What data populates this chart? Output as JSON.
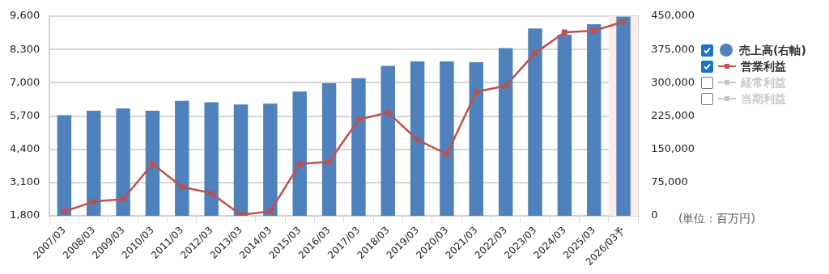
{
  "chart_data": {
    "type": "bar",
    "categories": [
      "2007/03",
      "2008/03",
      "2009/03",
      "2010/03",
      "2011/03",
      "2012/03",
      "2013/03",
      "2014/03",
      "2015/03",
      "2016/03",
      "2017/03",
      "2018/03",
      "2019/03",
      "2020/03",
      "2021/03",
      "2022/03",
      "2023/03",
      "2024/03",
      "2025/03",
      "2026/03予"
    ],
    "series": [
      {
        "name": "売上高(右軸)",
        "axis": "y2",
        "color": "#4f81bd",
        "values": [
          227000,
          237000,
          242000,
          237000,
          259000,
          256000,
          251000,
          253000,
          280000,
          299000,
          310000,
          338000,
          348000,
          348000,
          346000,
          378000,
          422000,
          408000,
          432000,
          449000
        ]
      },
      {
        "name": "営業利益",
        "type": "line",
        "color": "#c0504d",
        "values": [
          1970,
          2360,
          2450,
          3830,
          2930,
          2680,
          1840,
          1980,
          3830,
          3910,
          5560,
          5840,
          4770,
          4210,
          6650,
          6880,
          8160,
          8970,
          9030,
          9380
        ]
      },
      {
        "name": "経常利益",
        "type": "line",
        "color": "#c8c8c8",
        "values": [
          null,
          null,
          null,
          null,
          null,
          null,
          null,
          null,
          null,
          null,
          null,
          null,
          null,
          null,
          null,
          null,
          null,
          null,
          null,
          null
        ]
      },
      {
        "name": "当期利益",
        "type": "line",
        "color": "#c8c8c8",
        "values": [
          null,
          null,
          null,
          null,
          null,
          null,
          null,
          null,
          null,
          null,
          null,
          null,
          null,
          null,
          null,
          null,
          null,
          null,
          null,
          null
        ]
      }
    ],
    "ylim": [
      1800,
      9600
    ],
    "yticks": [
      {
        "value": 1800,
        "label": "1,800"
      },
      {
        "value": 3100,
        "label": "3,100"
      },
      {
        "value": 4400,
        "label": "4,400"
      },
      {
        "value": 5700,
        "label": "5,700"
      },
      {
        "value": 7000,
        "label": "7,000"
      },
      {
        "value": 8300,
        "label": "8,300"
      },
      {
        "value": 9600,
        "label": "9,600"
      }
    ],
    "y2lim": [
      0,
      450000
    ],
    "y2ticks": [
      0,
      {
        "value": 75000,
        "label": "75,000"
      },
      {
        "value": 150000,
        "label": "150,000"
      },
      {
        "value": 225000,
        "label": "225,000"
      },
      {
        "value": 300000,
        "label": "300,000"
      },
      {
        "value": 375000,
        "label": "375,000"
      },
      {
        "value": 450000,
        "label": "450,000"
      }
    ],
    "bands": [
      {
        "axis": "x",
        "from": "2026/03予",
        "to": "2026/03予",
        "color": "#fdeaea"
      }
    ],
    "annotations": [
      "(単位：百万円)"
    ],
    "grid": "y",
    "legend": "right",
    "marker": "square",
    "line_style": "solid"
  }
}
